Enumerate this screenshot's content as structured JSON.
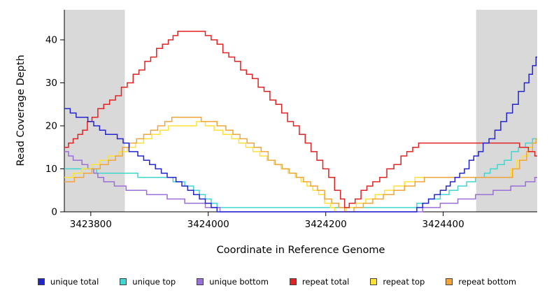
{
  "chart_data": {
    "type": "line",
    "subtype": "step",
    "title": "",
    "xlabel": "Coordinate in Reference Genome",
    "ylabel": "Read Coverage Depth",
    "xlim": [
      3423755,
      3424560
    ],
    "ylim": [
      0,
      47
    ],
    "xticks": [
      3423800,
      3424000,
      3424200,
      3424400
    ],
    "yticks": [
      0,
      10,
      20,
      30,
      40
    ],
    "grid": false,
    "legend_position": "bottom",
    "background_bands": {
      "color": "#d9d9d9",
      "regions": [
        [
          3423755,
          3423858
        ],
        [
          3424456,
          3424560
        ]
      ]
    },
    "draw_order": [
      1,
      2,
      4,
      5,
      3,
      0
    ],
    "series": [
      {
        "name": "unique total",
        "color": "#2424cf",
        "points": [
          [
            3423755,
            24
          ],
          [
            3423765,
            23
          ],
          [
            3423775,
            22
          ],
          [
            3423795,
            21
          ],
          [
            3423805,
            20
          ],
          [
            3423815,
            19
          ],
          [
            3423825,
            18
          ],
          [
            3423845,
            17
          ],
          [
            3423855,
            16
          ],
          [
            3423865,
            14
          ],
          [
            3423880,
            13
          ],
          [
            3423890,
            12
          ],
          [
            3423900,
            11
          ],
          [
            3423910,
            10
          ],
          [
            3423920,
            9
          ],
          [
            3423930,
            8
          ],
          [
            3423945,
            7
          ],
          [
            3423955,
            6
          ],
          [
            3423965,
            5
          ],
          [
            3423975,
            4
          ],
          [
            3423985,
            3
          ],
          [
            3423995,
            2
          ],
          [
            3424005,
            1
          ],
          [
            3424015,
            0
          ],
          [
            3424345,
            0
          ],
          [
            3424355,
            1
          ],
          [
            3424365,
            2
          ],
          [
            3424375,
            3
          ],
          [
            3424385,
            4
          ],
          [
            3424395,
            5
          ],
          [
            3424405,
            6
          ],
          [
            3424412,
            7
          ],
          [
            3424420,
            8
          ],
          [
            3424428,
            9
          ],
          [
            3424436,
            10
          ],
          [
            3424444,
            12
          ],
          [
            3424452,
            13
          ],
          [
            3424460,
            14
          ],
          [
            3424468,
            16
          ],
          [
            3424478,
            17
          ],
          [
            3424488,
            19
          ],
          [
            3424498,
            21
          ],
          [
            3424508,
            23
          ],
          [
            3424518,
            25
          ],
          [
            3424528,
            28
          ],
          [
            3424538,
            30
          ],
          [
            3424546,
            32
          ],
          [
            3424552,
            34
          ],
          [
            3424558,
            36
          ]
        ]
      },
      {
        "name": "unique top",
        "color": "#40d6d0",
        "points": [
          [
            3423755,
            10
          ],
          [
            3423800,
            10
          ],
          [
            3423810,
            9
          ],
          [
            3423870,
            9
          ],
          [
            3423880,
            8
          ],
          [
            3423930,
            8
          ],
          [
            3423940,
            7
          ],
          [
            3423960,
            6
          ],
          [
            3423975,
            5
          ],
          [
            3423985,
            4
          ],
          [
            3423995,
            3
          ],
          [
            3424005,
            2
          ],
          [
            3424015,
            1
          ],
          [
            3424340,
            1
          ],
          [
            3424355,
            2
          ],
          [
            3424375,
            3
          ],
          [
            3424395,
            4
          ],
          [
            3424410,
            5
          ],
          [
            3424425,
            6
          ],
          [
            3424440,
            7
          ],
          [
            3424455,
            8
          ],
          [
            3424470,
            9
          ],
          [
            3424480,
            10
          ],
          [
            3424492,
            11
          ],
          [
            3424504,
            12
          ],
          [
            3424516,
            14
          ],
          [
            3424528,
            15
          ],
          [
            3424540,
            16
          ],
          [
            3424552,
            17
          ]
        ]
      },
      {
        "name": "unique bottom",
        "color": "#9a6fd8",
        "points": [
          [
            3423755,
            14
          ],
          [
            3423762,
            13
          ],
          [
            3423770,
            12
          ],
          [
            3423785,
            11
          ],
          [
            3423795,
            10
          ],
          [
            3423805,
            9
          ],
          [
            3423812,
            8
          ],
          [
            3423822,
            7
          ],
          [
            3423840,
            6
          ],
          [
            3423860,
            5
          ],
          [
            3423895,
            4
          ],
          [
            3423930,
            3
          ],
          [
            3423960,
            2
          ],
          [
            3423995,
            1
          ],
          [
            3424020,
            0
          ],
          [
            3424350,
            0
          ],
          [
            3424365,
            1
          ],
          [
            3424395,
            2
          ],
          [
            3424425,
            3
          ],
          [
            3424455,
            4
          ],
          [
            3424485,
            5
          ],
          [
            3424515,
            6
          ],
          [
            3424540,
            7
          ],
          [
            3424556,
            8
          ]
        ]
      },
      {
        "name": "repeat total",
        "color": "#e22222",
        "points": [
          [
            3423755,
            15
          ],
          [
            3423762,
            16
          ],
          [
            3423770,
            17
          ],
          [
            3423778,
            18
          ],
          [
            3423786,
            19
          ],
          [
            3423794,
            21
          ],
          [
            3423802,
            22
          ],
          [
            3423812,
            24
          ],
          [
            3423822,
            25
          ],
          [
            3423832,
            26
          ],
          [
            3423842,
            27
          ],
          [
            3423852,
            29
          ],
          [
            3423862,
            30
          ],
          [
            3423872,
            32
          ],
          [
            3423882,
            33
          ],
          [
            3423892,
            35
          ],
          [
            3423902,
            36
          ],
          [
            3423912,
            38
          ],
          [
            3423922,
            39
          ],
          [
            3423932,
            40
          ],
          [
            3423940,
            41
          ],
          [
            3423948,
            42
          ],
          [
            3423985,
            42
          ],
          [
            3423995,
            41
          ],
          [
            3424005,
            40
          ],
          [
            3424015,
            39
          ],
          [
            3424025,
            37
          ],
          [
            3424035,
            36
          ],
          [
            3424045,
            35
          ],
          [
            3424055,
            33
          ],
          [
            3424065,
            32
          ],
          [
            3424075,
            31
          ],
          [
            3424085,
            29
          ],
          [
            3424095,
            28
          ],
          [
            3424105,
            26
          ],
          [
            3424115,
            25
          ],
          [
            3424125,
            23
          ],
          [
            3424135,
            21
          ],
          [
            3424145,
            20
          ],
          [
            3424155,
            18
          ],
          [
            3424165,
            16
          ],
          [
            3424175,
            14
          ],
          [
            3424185,
            12
          ],
          [
            3424195,
            10
          ],
          [
            3424205,
            8
          ],
          [
            3424215,
            5
          ],
          [
            3424225,
            3
          ],
          [
            3424232,
            1
          ],
          [
            3424240,
            2
          ],
          [
            3424250,
            3
          ],
          [
            3424260,
            5
          ],
          [
            3424270,
            6
          ],
          [
            3424280,
            7
          ],
          [
            3424292,
            8
          ],
          [
            3424304,
            10
          ],
          [
            3424316,
            11
          ],
          [
            3424328,
            13
          ],
          [
            3424338,
            14
          ],
          [
            3424348,
            15
          ],
          [
            3424358,
            16
          ],
          [
            3424515,
            16
          ],
          [
            3424530,
            15
          ],
          [
            3424545,
            14
          ],
          [
            3424556,
            13
          ]
        ]
      },
      {
        "name": "repeat top",
        "color": "#ffe135",
        "points": [
          [
            3423755,
            8
          ],
          [
            3423770,
            9
          ],
          [
            3423785,
            10
          ],
          [
            3423800,
            11
          ],
          [
            3423815,
            12
          ],
          [
            3423830,
            13
          ],
          [
            3423848,
            14
          ],
          [
            3423862,
            15
          ],
          [
            3423876,
            16
          ],
          [
            3423890,
            17
          ],
          [
            3423904,
            18
          ],
          [
            3423918,
            19
          ],
          [
            3423932,
            20
          ],
          [
            3423980,
            21
          ],
          [
            3423995,
            20
          ],
          [
            3424010,
            19
          ],
          [
            3424025,
            18
          ],
          [
            3424040,
            17
          ],
          [
            3424052,
            16
          ],
          [
            3424064,
            15
          ],
          [
            3424076,
            14
          ],
          [
            3424088,
            13
          ],
          [
            3424100,
            12
          ],
          [
            3424112,
            11
          ],
          [
            3424124,
            10
          ],
          [
            3424136,
            9
          ],
          [
            3424148,
            8
          ],
          [
            3424158,
            7
          ],
          [
            3424168,
            6
          ],
          [
            3424178,
            5
          ],
          [
            3424188,
            4
          ],
          [
            3424198,
            2
          ],
          [
            3424208,
            1
          ],
          [
            3424215,
            0
          ],
          [
            3424235,
            1
          ],
          [
            3424252,
            2
          ],
          [
            3424268,
            3
          ],
          [
            3424284,
            4
          ],
          [
            3424300,
            5
          ],
          [
            3424316,
            6
          ],
          [
            3424334,
            7
          ],
          [
            3424352,
            8
          ],
          [
            3424500,
            8
          ],
          [
            3424515,
            10
          ],
          [
            3424525,
            12
          ],
          [
            3424535,
            13
          ],
          [
            3424545,
            15
          ],
          [
            3424552,
            16
          ],
          [
            3424558,
            17
          ]
        ]
      },
      {
        "name": "repeat bottom",
        "color": "#f2a43b",
        "points": [
          [
            3423755,
            7
          ],
          [
            3423772,
            8
          ],
          [
            3423788,
            9
          ],
          [
            3423802,
            10
          ],
          [
            3423816,
            11
          ],
          [
            3423830,
            12
          ],
          [
            3423842,
            13
          ],
          [
            3423854,
            15
          ],
          [
            3423866,
            16
          ],
          [
            3423878,
            17
          ],
          [
            3423890,
            18
          ],
          [
            3423902,
            19
          ],
          [
            3423914,
            20
          ],
          [
            3423926,
            21
          ],
          [
            3423938,
            22
          ],
          [
            3423972,
            22
          ],
          [
            3423988,
            21
          ],
          [
            3424015,
            20
          ],
          [
            3424030,
            19
          ],
          [
            3424042,
            18
          ],
          [
            3424054,
            17
          ],
          [
            3424066,
            16
          ],
          [
            3424078,
            15
          ],
          [
            3424090,
            14
          ],
          [
            3424102,
            12
          ],
          [
            3424114,
            11
          ],
          [
            3424126,
            10
          ],
          [
            3424138,
            9
          ],
          [
            3424150,
            8
          ],
          [
            3424162,
            7
          ],
          [
            3424174,
            6
          ],
          [
            3424186,
            5
          ],
          [
            3424198,
            3
          ],
          [
            3424210,
            2
          ],
          [
            3424222,
            1
          ],
          [
            3424232,
            0
          ],
          [
            3424248,
            1
          ],
          [
            3424264,
            2
          ],
          [
            3424280,
            3
          ],
          [
            3424298,
            4
          ],
          [
            3424316,
            5
          ],
          [
            3424334,
            6
          ],
          [
            3424352,
            7
          ],
          [
            3424368,
            8
          ],
          [
            3424505,
            8
          ],
          [
            3424518,
            10
          ],
          [
            3424530,
            12
          ],
          [
            3424542,
            14
          ],
          [
            3424552,
            16
          ],
          [
            3424558,
            17
          ]
        ]
      }
    ]
  }
}
